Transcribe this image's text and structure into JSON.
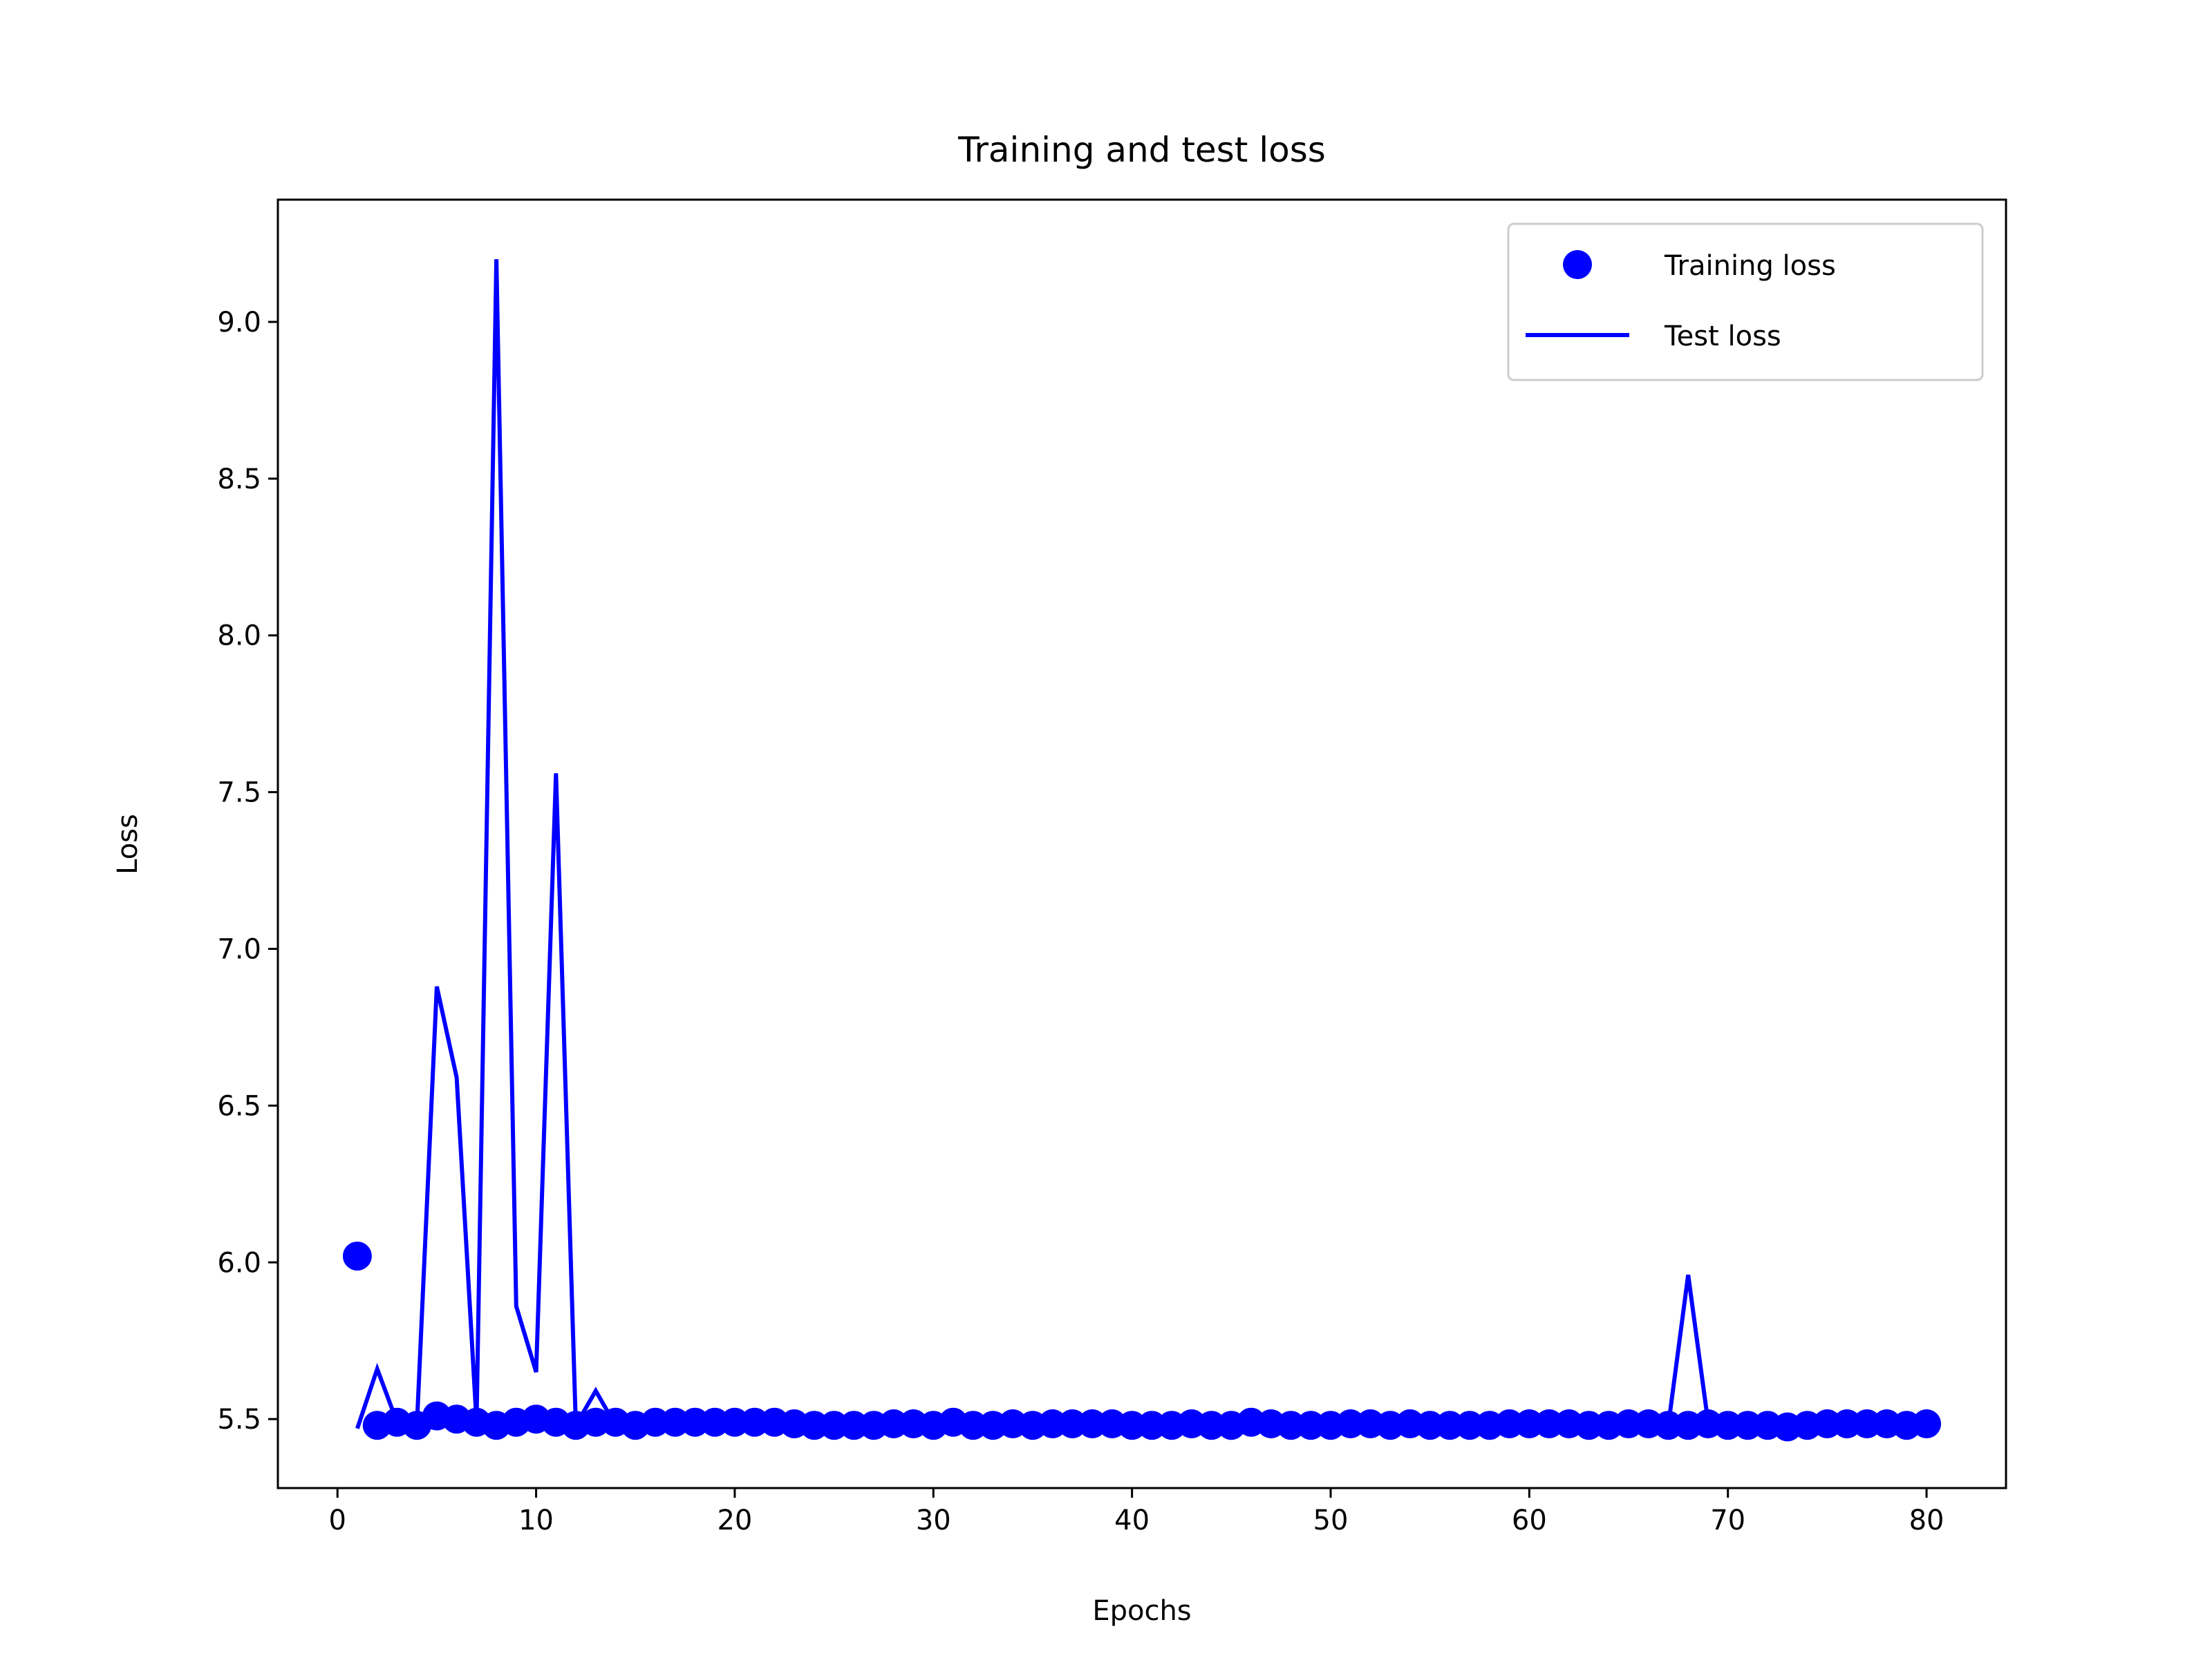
{
  "chart_data": {
    "type": "line",
    "title": "Training and test loss",
    "xlabel": "Epochs",
    "ylabel": "Loss",
    "xlim": [
      -3,
      84
    ],
    "ylim": [
      5.28,
      9.39
    ],
    "xticks": [
      0,
      10,
      20,
      30,
      40,
      50,
      60,
      70,
      80
    ],
    "xtick_labels": [
      "0",
      "10",
      "20",
      "30",
      "40",
      "50",
      "60",
      "70",
      "80"
    ],
    "yticks": [
      5.5,
      6.0,
      6.5,
      7.0,
      7.5,
      8.0,
      8.5,
      9.0
    ],
    "ytick_labels": [
      "5.5",
      "6.0",
      "6.5",
      "7.0",
      "7.5",
      "8.0",
      "8.5",
      "9.0"
    ],
    "grid": false,
    "legend_position": "top-right",
    "series": [
      {
        "name": "Training loss",
        "style": "markers",
        "color": "#0000ff",
        "x": [
          1,
          2,
          3,
          4,
          5,
          6,
          7,
          8,
          9,
          10,
          11,
          12,
          13,
          14,
          15,
          16,
          17,
          18,
          19,
          20,
          21,
          22,
          23,
          24,
          25,
          26,
          27,
          28,
          29,
          30,
          31,
          32,
          33,
          34,
          35,
          36,
          37,
          38,
          39,
          40,
          41,
          42,
          43,
          44,
          45,
          46,
          47,
          48,
          49,
          50,
          51,
          52,
          53,
          54,
          55,
          56,
          57,
          58,
          59,
          60,
          61,
          62,
          63,
          64,
          65,
          66,
          67,
          68,
          69,
          70,
          71,
          72,
          73,
          74,
          75,
          76,
          77,
          78,
          79,
          80
        ],
        "y": [
          6.02,
          5.48,
          5.49,
          5.48,
          5.51,
          5.5,
          5.49,
          5.48,
          5.49,
          5.5,
          5.49,
          5.48,
          5.49,
          5.49,
          5.48,
          5.49,
          5.49,
          5.49,
          5.49,
          5.49,
          5.49,
          5.49,
          5.485,
          5.48,
          5.48,
          5.48,
          5.48,
          5.485,
          5.485,
          5.48,
          5.49,
          5.48,
          5.48,
          5.485,
          5.48,
          5.485,
          5.485,
          5.485,
          5.485,
          5.48,
          5.48,
          5.48,
          5.485,
          5.48,
          5.48,
          5.49,
          5.485,
          5.48,
          5.48,
          5.48,
          5.485,
          5.485,
          5.48,
          5.485,
          5.48,
          5.48,
          5.48,
          5.48,
          5.485,
          5.485,
          5.485,
          5.485,
          5.48,
          5.48,
          5.485,
          5.485,
          5.48,
          5.48,
          5.485,
          5.48,
          5.48,
          5.48,
          5.475,
          5.48,
          5.485,
          5.485,
          5.485,
          5.485,
          5.48,
          5.485
        ]
      },
      {
        "name": "Test loss",
        "style": "line",
        "color": "#0000ff",
        "x": [
          1,
          2,
          3,
          4,
          5,
          6,
          7,
          8,
          9,
          10,
          11,
          12,
          13,
          14,
          15,
          16,
          17,
          18,
          19,
          20,
          21,
          22,
          23,
          24,
          25,
          26,
          27,
          28,
          29,
          30,
          31,
          32,
          33,
          34,
          35,
          36,
          37,
          38,
          39,
          40,
          41,
          42,
          43,
          44,
          45,
          46,
          47,
          48,
          49,
          50,
          51,
          52,
          53,
          54,
          55,
          56,
          57,
          58,
          59,
          60,
          61,
          62,
          63,
          64,
          65,
          66,
          67,
          68,
          69,
          70,
          71,
          72,
          73,
          74,
          75,
          76,
          77,
          78,
          79,
          80
        ],
        "y": [
          5.47,
          5.66,
          5.49,
          5.48,
          6.88,
          6.59,
          5.49,
          9.2,
          5.86,
          5.65,
          7.56,
          5.48,
          5.59,
          5.48,
          5.48,
          5.49,
          5.49,
          5.49,
          5.49,
          5.49,
          5.49,
          5.49,
          5.48,
          5.48,
          5.48,
          5.48,
          5.48,
          5.48,
          5.48,
          5.48,
          5.48,
          5.48,
          5.48,
          5.48,
          5.48,
          5.48,
          5.48,
          5.48,
          5.48,
          5.48,
          5.48,
          5.48,
          5.48,
          5.48,
          5.48,
          5.48,
          5.48,
          5.48,
          5.48,
          5.48,
          5.48,
          5.48,
          5.48,
          5.48,
          5.48,
          5.48,
          5.48,
          5.48,
          5.48,
          5.48,
          5.48,
          5.48,
          5.48,
          5.48,
          5.48,
          5.48,
          5.48,
          5.96,
          5.49,
          5.48,
          5.48,
          5.48,
          5.48,
          5.48,
          5.48,
          5.48,
          5.48,
          5.48,
          5.48,
          5.48
        ]
      }
    ]
  }
}
